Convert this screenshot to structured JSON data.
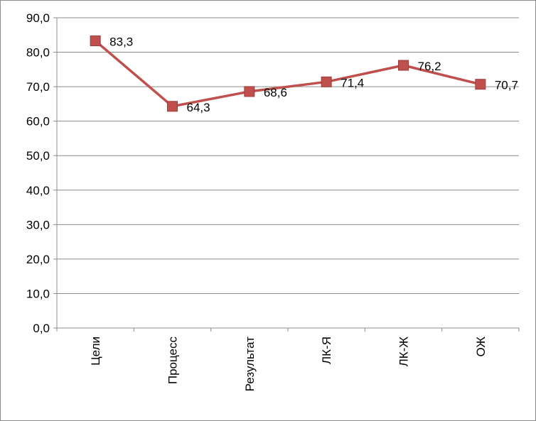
{
  "chart_data": {
    "type": "line",
    "categories": [
      "Цели",
      "Процесс",
      "Результат",
      "ЛК-Я",
      "ЛК-Ж",
      "ОЖ"
    ],
    "series": [
      {
        "values": [
          83.3,
          64.3,
          68.6,
          71.4,
          76.2,
          70.7
        ],
        "data_labels": [
          "83,3",
          "64,3",
          "68,6",
          "71,4",
          "76,2",
          "70,7"
        ],
        "color": "#c0504d"
      }
    ],
    "y_ticks": [
      0,
      10,
      20,
      30,
      40,
      50,
      60,
      70,
      80,
      90
    ],
    "y_tick_labels": [
      "0,0",
      "10,0",
      "20,0",
      "30,0",
      "40,0",
      "50,0",
      "60,0",
      "70,0",
      "80,0",
      "90,0"
    ],
    "ylim": [
      0,
      90
    ],
    "grid": true,
    "legend": "none",
    "title": "",
    "xlabel": "",
    "ylabel": ""
  },
  "colors": {
    "series": "#c0504d",
    "marker": "#c0504d",
    "marker_edge": "#9a3b38",
    "gridline": "#8c8c8c",
    "axis": "#8c8c8c",
    "border": "#8c8c8c"
  }
}
